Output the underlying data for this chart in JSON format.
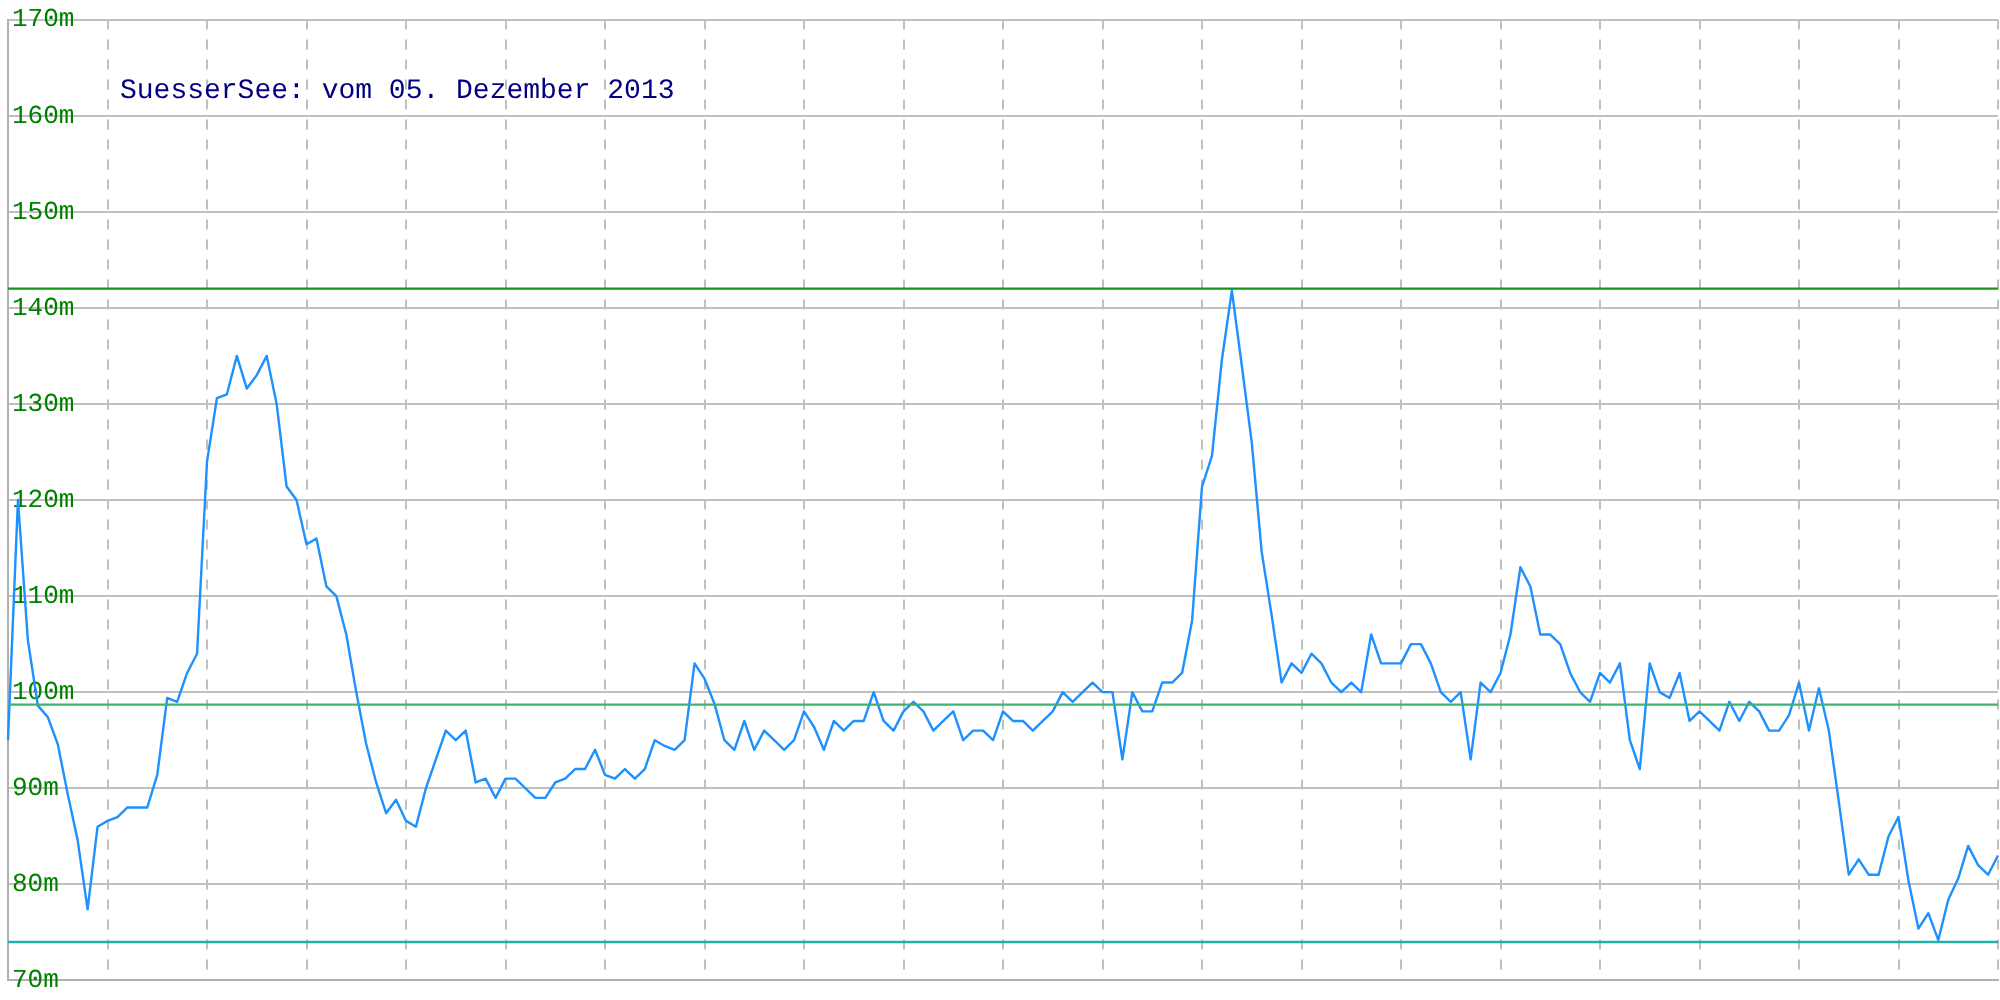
{
  "chart_data": {
    "type": "line",
    "title": "SuesserSee: vom 05. Dezember 2013",
    "categories": [
      null,
      null,
      null,
      null,
      null,
      null,
      null,
      null,
      null,
      null,
      null,
      null,
      null,
      null,
      null,
      null,
      null,
      null,
      null,
      null,
      null,
      null,
      null,
      null,
      null,
      null,
      null,
      null,
      null,
      null,
      null,
      null,
      null,
      null,
      null,
      null,
      null,
      null,
      null,
      null,
      null,
      null,
      null,
      null,
      null,
      null,
      null,
      null,
      null,
      null,
      null,
      null,
      null,
      null,
      null,
      null,
      null,
      null,
      null,
      null,
      null,
      null,
      null,
      null,
      null,
      null,
      null,
      null,
      null,
      null,
      null,
      null,
      null,
      null,
      null,
      null,
      null,
      null,
      null,
      null,
      null,
      null,
      null,
      null,
      null,
      null,
      null,
      null,
      null,
      null,
      null,
      null,
      null,
      null,
      null,
      null,
      null,
      null,
      null,
      null,
      null,
      null,
      null,
      null,
      null,
      null,
      null,
      null,
      null,
      null,
      null,
      null,
      null,
      null,
      null,
      null,
      null,
      null,
      null,
      null,
      null,
      null,
      null,
      null,
      null,
      null,
      null,
      null,
      null,
      null,
      null,
      null,
      null,
      null,
      null,
      null,
      null,
      null,
      null,
      null,
      null,
      null,
      null,
      null,
      null,
      null,
      null,
      null,
      null,
      null,
      null,
      null,
      null,
      null,
      null,
      null,
      null,
      null,
      null,
      null,
      null,
      null,
      null,
      null,
      null,
      null,
      null,
      null,
      null,
      null,
      null,
      null,
      null,
      null,
      null,
      null,
      null,
      null,
      null,
      null,
      null,
      null,
      null,
      null,
      null,
      null,
      null,
      null,
      null,
      null,
      null,
      null,
      null,
      null,
      null,
      null,
      null,
      null,
      null,
      null,
      null
    ],
    "series": [
      {
        "color": "#1e90ff",
        "values": [
          95,
          120,
          105.4,
          98.6,
          97.4,
          94.6,
          89.4,
          84.6,
          77.4,
          86,
          86.6,
          87,
          88,
          88,
          88,
          91.4,
          99.4,
          99,
          102,
          104,
          124,
          130.6,
          131,
          135,
          131.6,
          133,
          135,
          130,
          121.4,
          120,
          115.4,
          116,
          111,
          110,
          106,
          100,
          94.6,
          90.6,
          87.4,
          88.8,
          86.6,
          86,
          90,
          93,
          96,
          95,
          96,
          90.6,
          91,
          89,
          91,
          91,
          90,
          89,
          89,
          90.6,
          91,
          92,
          92,
          94,
          91.4,
          91,
          92,
          91,
          92,
          95,
          94.4,
          94,
          95,
          103,
          101.4,
          98.8,
          95,
          94,
          97,
          94,
          96,
          95,
          94,
          95,
          98,
          96.4,
          94,
          97,
          96,
          97,
          97,
          100,
          97,
          96,
          98,
          99,
          98,
          96,
          97,
          98,
          95,
          96,
          96,
          95,
          98,
          97,
          97,
          96,
          97,
          98,
          100,
          99,
          100,
          101,
          100,
          100,
          93,
          100,
          98,
          98,
          101,
          101,
          102,
          107.4,
          121.4,
          124.6,
          134.6,
          141.8,
          134,
          126,
          114.6,
          108,
          101,
          103,
          102,
          104,
          103,
          101,
          100,
          101,
          100,
          106,
          103,
          103,
          103,
          105,
          105,
          103,
          100,
          99,
          100,
          93,
          101,
          100,
          102,
          106,
          113,
          111,
          106,
          106,
          105,
          102,
          100,
          99,
          102,
          101,
          103,
          95,
          92,
          103,
          100,
          99.4,
          102,
          97,
          98,
          97,
          96,
          99,
          97,
          99,
          98,
          96,
          96,
          97.6,
          101,
          96,
          100.4,
          96,
          88.6,
          81,
          82.6,
          81,
          81,
          85,
          87,
          80.4,
          75.4,
          77,
          74.2,
          78.4,
          80.6,
          84,
          82,
          81,
          83
        ]
      }
    ],
    "ylim": [
      70,
      170
    ],
    "yticks": [
      {
        "value": 70,
        "label": "70m"
      },
      {
        "value": 80,
        "label": "80m"
      },
      {
        "value": 90,
        "label": "90m"
      },
      {
        "value": 100,
        "label": "100m"
      },
      {
        "value": 110,
        "label": "110m"
      },
      {
        "value": 120,
        "label": "120m"
      },
      {
        "value": 130,
        "label": "130m"
      },
      {
        "value": 140,
        "label": "140m"
      },
      {
        "value": 150,
        "label": "150m"
      },
      {
        "value": 160,
        "label": "160m"
      },
      {
        "value": 170,
        "label": "170m"
      }
    ],
    "tick_labels": "y",
    "ref_lines": [
      {
        "axis": "y",
        "value": 142,
        "color": "#169416"
      },
      {
        "axis": "y",
        "value": 98.7,
        "color": "#3cb371"
      },
      {
        "axis": "y",
        "value": 74,
        "color": "#20b2aa"
      }
    ],
    "grid": true,
    "legend": false,
    "marker": "none",
    "line_style": "solid"
  }
}
